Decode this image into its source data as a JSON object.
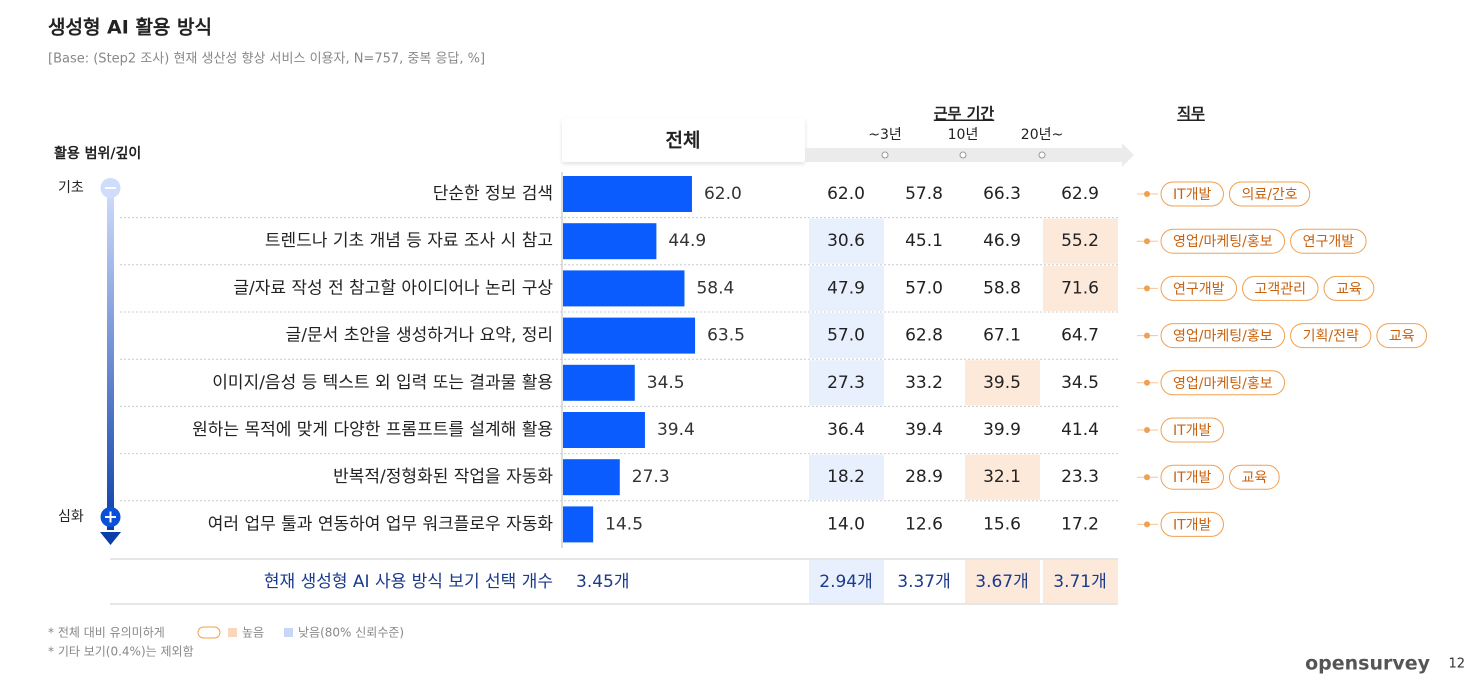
{
  "header": {
    "title": "생성형 AI 활용 방식",
    "subtitle": "[Base: (Step2 조사) 현재 생산성 향상 서비스 이용자, N=757, 중복 응답, %]"
  },
  "depth_axis": {
    "label": "활용 범위/깊이",
    "top": "기초",
    "bottom": "심화"
  },
  "chart_data": {
    "type": "hbar",
    "title": "전체",
    "categories": [
      "단순한 정보 검색",
      "트렌드나 기초 개념 등 자료 조사 시 참고",
      "글/자료 작성 전 참고할 아이디어나 논리 구상",
      "글/문서 초안을 생성하거나 요약, 정리",
      "이미지/음성 등 텍스트 외 입력 또는 결과물 활용",
      "원하는 목적에 맞게 다양한 프롬프트를 설계해 활용",
      "반복적/정형화된 작업을 자동화",
      "여러 업무 툴과 연동하여 업무 워크플로우 자동화"
    ],
    "values": [
      62,
      44.9,
      58.4,
      63.5,
      34.5,
      39.4,
      27.3,
      14.5
    ],
    "value_labels": [
      "62.0",
      "44.9",
      "58.4",
      "63.5",
      "34.5",
      "39.4",
      "27.3",
      "14.5"
    ],
    "color": "#0a5cff",
    "xlim": [
      0,
      100
    ]
  },
  "tenure": {
    "title": "근무 기간",
    "ticks": [
      "~3년",
      "10년",
      "20년~"
    ],
    "rows": [
      [
        "62.0",
        "57.8",
        "66.3",
        "62.9"
      ],
      [
        "30.6",
        "45.1",
        "46.9",
        "55.2"
      ],
      [
        "47.9",
        "57.0",
        "58.8",
        "71.6"
      ],
      [
        "57.0",
        "62.8",
        "67.1",
        "64.7"
      ],
      [
        "27.3",
        "33.2",
        "39.5",
        "34.5"
      ],
      [
        "36.4",
        "39.4",
        "39.9",
        "41.4"
      ],
      [
        "18.2",
        "28.9",
        "32.1",
        "23.3"
      ],
      [
        "14.0",
        "12.6",
        "15.6",
        "17.2"
      ]
    ],
    "highlights": [
      [
        null,
        null,
        null,
        null
      ],
      [
        "low",
        null,
        null,
        "high"
      ],
      [
        "low",
        null,
        null,
        "high"
      ],
      [
        "low",
        null,
        null,
        null
      ],
      [
        "low",
        null,
        "high",
        null
      ],
      [
        null,
        null,
        null,
        null
      ],
      [
        "low",
        null,
        "high",
        null
      ],
      [
        null,
        null,
        null,
        null
      ]
    ]
  },
  "jobs": {
    "title": "직무",
    "rows": [
      [
        "IT개발",
        "의료/간호"
      ],
      [
        "영업/마케팅/홍보",
        "연구개발"
      ],
      [
        "연구개발",
        "고객관리",
        "교육"
      ],
      [
        "영업/마케팅/홍보",
        "기획/전략",
        "교육"
      ],
      [
        "영업/마케팅/홍보"
      ],
      [
        "IT개발"
      ],
      [
        "IT개발",
        "교육"
      ],
      [
        "IT개발"
      ]
    ]
  },
  "summary": {
    "label": "현재 생성형 AI 사용 방식 보기 선택 개수",
    "total": "3.45개",
    "tenure": [
      "2.94개",
      "3.37개",
      "3.67개",
      "3.71개"
    ],
    "highlights": [
      "low",
      null,
      "high",
      "high"
    ]
  },
  "footnotes": {
    "note1": "* 전체 대비 유의미하게",
    "high": "높음",
    "low": "낮음(80% 신뢰수준)",
    "note2": "* 기타 보기(0.4%)는 제외함"
  },
  "footer": {
    "logo": "opensurvey",
    "page": "12"
  }
}
